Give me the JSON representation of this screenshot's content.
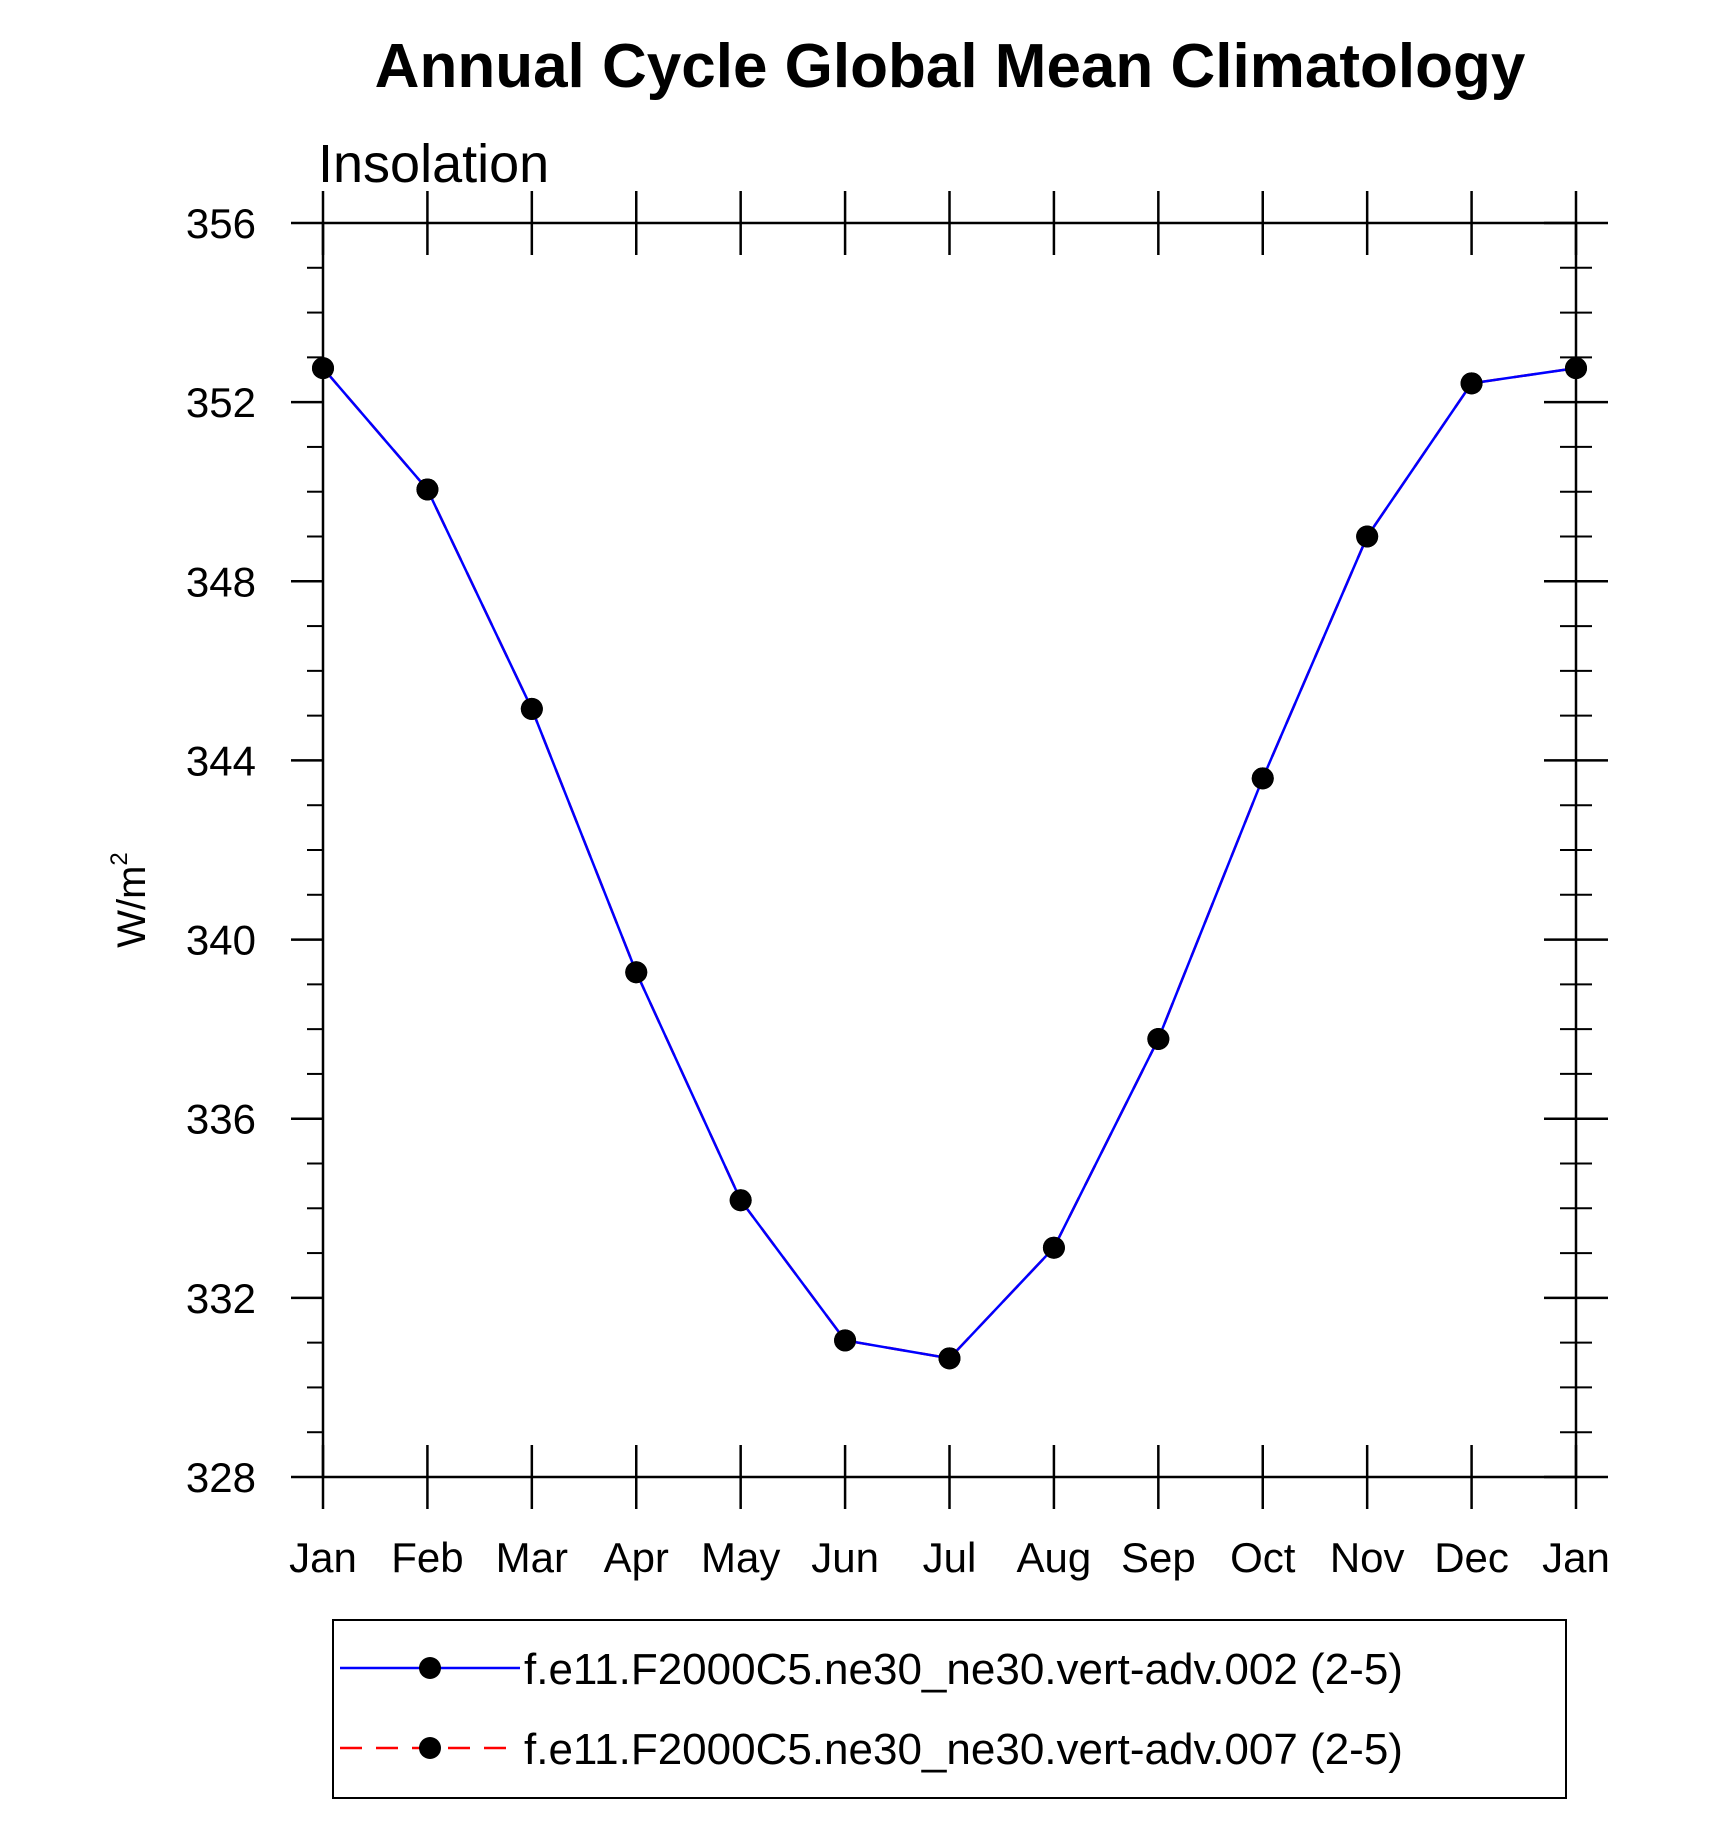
{
  "chart_data": {
    "type": "line",
    "title": "Annual Cycle Global Mean Climatology",
    "subtitle": "Insolation",
    "xlabel": "",
    "ylabel": {
      "base": "W/m",
      "sup": "2"
    },
    "categories": [
      "Jan",
      "Feb",
      "Mar",
      "Apr",
      "May",
      "Jun",
      "Jul",
      "Aug",
      "Sep",
      "Oct",
      "Nov",
      "Dec",
      "Jan"
    ],
    "ylim": [
      328,
      356
    ],
    "yticks": [
      "328",
      "332",
      "336",
      "340",
      "344",
      "348",
      "352",
      "356"
    ],
    "ytick_values": [
      328,
      332,
      336,
      340,
      344,
      348,
      352,
      356
    ],
    "series": [
      {
        "name": "f.e11.F2000C5.ne30_ne30.vert-adv.002 (2-5)",
        "color": "#0000ff",
        "dash": "solid",
        "marker": "filled-circle",
        "values": [
          352.76,
          350.05,
          345.15,
          339.27,
          334.18,
          331.05,
          330.65,
          333.12,
          337.78,
          343.6,
          349.0,
          352.42,
          352.76
        ]
      },
      {
        "name": "f.e11.F2000C5.ne30_ne30.vert-adv.007 (2-5)",
        "color": "#ff0000",
        "dash": "dashed",
        "marker": "filled-circle",
        "values": [
          352.76,
          350.05,
          345.15,
          339.27,
          334.18,
          331.05,
          330.65,
          333.12,
          337.78,
          343.6,
          349.0,
          352.42,
          352.76
        ]
      }
    ],
    "legend_position": "bottom"
  }
}
